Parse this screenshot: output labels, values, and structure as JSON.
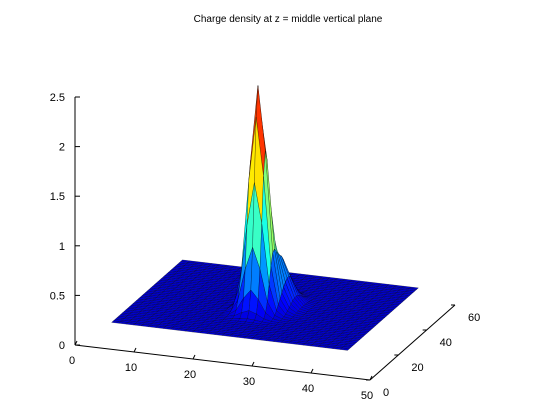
{
  "chart_data": {
    "type": "surface",
    "title": "Charge density at z = middle vertical plane",
    "xlabel": "",
    "ylabel": "",
    "zlabel": "",
    "xlim": [
      0,
      50
    ],
    "ylim": [
      0,
      60
    ],
    "zlim": [
      0,
      2.5
    ],
    "x_ticks": [
      0,
      10,
      20,
      30,
      40,
      50
    ],
    "y_ticks": [
      0,
      20,
      40,
      60
    ],
    "z_ticks": [
      0,
      0.5,
      1,
      1.5,
      2,
      2.5
    ],
    "z_tick_labels": [
      "0",
      "0.5",
      "1",
      "1.5",
      "2",
      "2.5"
    ],
    "grid": false,
    "colormap": "jet",
    "surface_extent": {
      "x": [
        5,
        45
      ],
      "y": [
        5,
        55
      ],
      "base_z": 0.2
    },
    "peak": {
      "x": 25,
      "y": 25,
      "z": 2.4
    },
    "shoulder": {
      "x": 27,
      "y": 31,
      "z": 0.7
    },
    "edge_color": "#000000"
  }
}
